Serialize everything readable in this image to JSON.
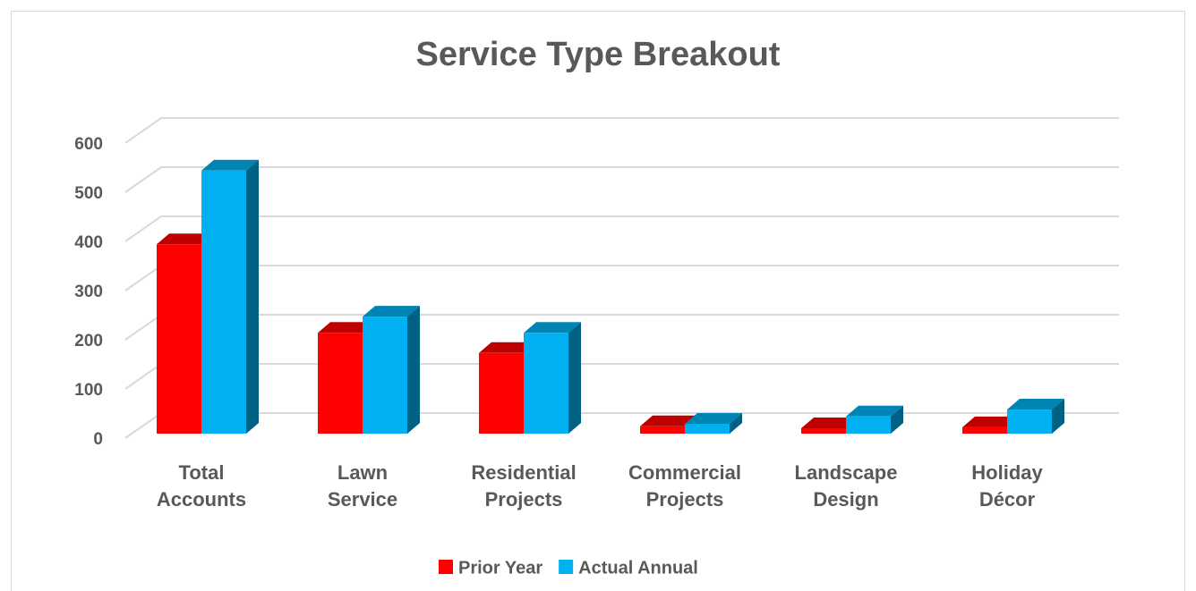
{
  "chart_data": {
    "type": "bar3d",
    "title": "Service Type Breakout",
    "categories": [
      "Total Accounts",
      "Lawn Service",
      "Residential Projects",
      "Commercial Projects",
      "Landscape Design",
      "Holiday Décor"
    ],
    "series": [
      {
        "name": "Prior Year",
        "color": "#ff0000",
        "values": [
          385,
          205,
          164,
          15,
          11,
          13
        ]
      },
      {
        "name": "Actual Annual",
        "color": "#00b0f0",
        "values": [
          535,
          238,
          205,
          20,
          35,
          49
        ]
      }
    ],
    "ylim": [
      0,
      600
    ],
    "yticks": [
      0,
      100,
      200,
      300,
      400,
      500,
      600
    ],
    "grid": true,
    "legend": "bottom"
  }
}
